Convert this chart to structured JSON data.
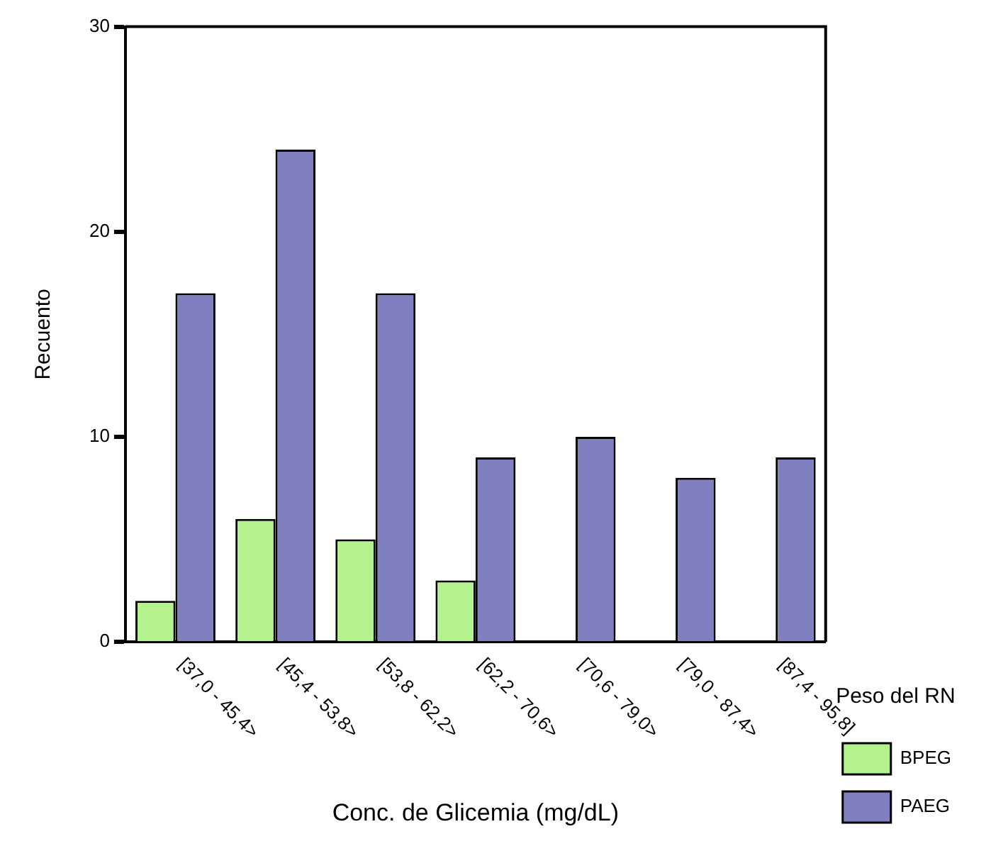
{
  "chart_data": {
    "type": "bar",
    "xlabel": "Conc. de Glicemia (mg/dL)",
    "ylabel": "Recuento",
    "legend_title": "Peso del RN",
    "legend": "right",
    "categories": [
      "[37,0 - 45,4>",
      "[45,4 - 53,8>",
      "[53,8 - 62,2>",
      "[62,2 - 70,6>",
      "[70,6 - 79,0>",
      "[79,0 - 87,4>",
      "[87,4 - 95,8]"
    ],
    "series": [
      {
        "name": "BPEG",
        "color": "#b3f28c",
        "values": [
          2,
          6,
          5,
          3,
          null,
          null,
          null
        ]
      },
      {
        "name": "PAEG",
        "color": "#8080c0",
        "values": [
          17,
          24,
          17,
          9,
          10,
          8,
          9
        ]
      }
    ],
    "ylim": [
      0,
      30
    ],
    "yticks": [
      0,
      10,
      20,
      30
    ],
    "grid": false
  }
}
